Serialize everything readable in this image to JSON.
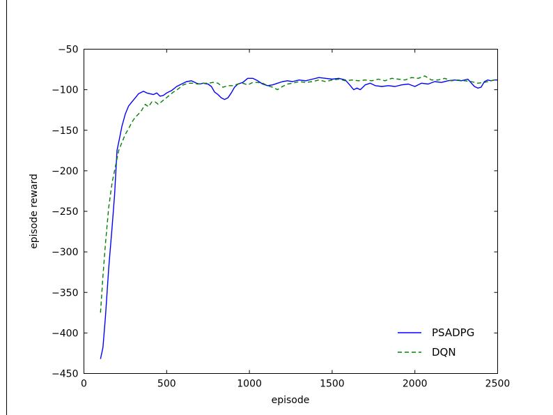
{
  "chart_data": {
    "type": "line",
    "title": "",
    "xlabel": "episode",
    "ylabel": "episode reward",
    "xlim": [
      0,
      2500
    ],
    "ylim": [
      -450,
      -50
    ],
    "xticks": [
      0,
      500,
      1000,
      1500,
      2000,
      2500
    ],
    "yticks": [
      -50,
      -100,
      -150,
      -200,
      -250,
      -300,
      -350,
      -400,
      -450
    ],
    "xtick_labels": [
      "0",
      "500",
      "1000",
      "1500",
      "2000",
      "2500"
    ],
    "ytick_labels": [
      "−50",
      "−100",
      "−150",
      "−200",
      "−250",
      "−300",
      "−350",
      "−400",
      "−450"
    ],
    "grid": false,
    "legend_position": "lower-right",
    "series": [
      {
        "name": "PSADPG",
        "color": "#0000ff",
        "style": "solid",
        "x": [
          100,
          115,
          130,
          150,
          170,
          185,
          200,
          215,
          230,
          250,
          270,
          290,
          310,
          330,
          360,
          380,
          400,
          420,
          440,
          460,
          480,
          500,
          530,
          560,
          590,
          620,
          650,
          680,
          700,
          720,
          750,
          770,
          790,
          810,
          830,
          850,
          870,
          890,
          910,
          930,
          960,
          990,
          1020,
          1050,
          1080,
          1110,
          1140,
          1170,
          1200,
          1230,
          1260,
          1300,
          1340,
          1380,
          1420,
          1460,
          1500,
          1540,
          1580,
          1610,
          1630,
          1650,
          1670,
          1700,
          1730,
          1760,
          1800,
          1840,
          1880,
          1920,
          1960,
          2000,
          2040,
          2080,
          2120,
          2160,
          2200,
          2240,
          2280,
          2320,
          2360,
          2380,
          2400,
          2420,
          2440,
          2460,
          2480,
          2500
        ],
        "values": [
          -432,
          -418,
          -380,
          -320,
          -270,
          -230,
          -175,
          -160,
          -145,
          -130,
          -120,
          -115,
          -110,
          -105,
          -102,
          -104,
          -105,
          -106,
          -104,
          -108,
          -107,
          -104,
          -101,
          -96,
          -93,
          -90,
          -89,
          -92,
          -93,
          -92,
          -93,
          -96,
          -103,
          -106,
          -110,
          -112,
          -110,
          -104,
          -97,
          -93,
          -91,
          -86,
          -86,
          -89,
          -93,
          -95,
          -94,
          -92,
          -90,
          -89,
          -90,
          -88,
          -89,
          -87,
          -85,
          -86,
          -87,
          -86,
          -88,
          -95,
          -100,
          -98,
          -100,
          -94,
          -92,
          -95,
          -96,
          -95,
          -96,
          -94,
          -93,
          -96,
          -92,
          -93,
          -90,
          -91,
          -89,
          -88,
          -89,
          -87,
          -96,
          -98,
          -97,
          -90,
          -88,
          -89,
          -88,
          -88
        ]
      },
      {
        "name": "DQN",
        "color": "#008000",
        "style": "dashed",
        "x": [
          100,
          115,
          130,
          150,
          170,
          190,
          210,
          230,
          250,
          270,
          290,
          310,
          330,
          350,
          370,
          390,
          410,
          430,
          450,
          480,
          510,
          540,
          570,
          600,
          630,
          660,
          690,
          720,
          750,
          780,
          810,
          840,
          870,
          900,
          930,
          960,
          990,
          1020,
          1050,
          1080,
          1110,
          1140,
          1170,
          1200,
          1230,
          1260,
          1300,
          1340,
          1380,
          1420,
          1460,
          1500,
          1540,
          1580,
          1620,
          1660,
          1700,
          1740,
          1780,
          1820,
          1860,
          1900,
          1940,
          1980,
          2020,
          2060,
          2100,
          2140,
          2180,
          2220,
          2260,
          2300,
          2340,
          2380,
          2420,
          2460,
          2500
        ],
        "values": [
          -375,
          -330,
          -290,
          -245,
          -215,
          -195,
          -175,
          -165,
          -155,
          -148,
          -140,
          -134,
          -130,
          -125,
          -118,
          -121,
          -115,
          -115,
          -118,
          -113,
          -108,
          -103,
          -99,
          -94,
          -92,
          -92,
          -93,
          -92,
          -92,
          -91,
          -92,
          -97,
          -95,
          -95,
          -93,
          -92,
          -94,
          -91,
          -91,
          -92,
          -95,
          -97,
          -100,
          -96,
          -93,
          -92,
          -90,
          -91,
          -90,
          -88,
          -90,
          -88,
          -87,
          -89,
          -88,
          -89,
          -88,
          -89,
          -87,
          -89,
          -86,
          -87,
          -88,
          -85,
          -86,
          -83,
          -88,
          -88,
          -86,
          -89,
          -88,
          -89,
          -90,
          -92,
          -91,
          -89,
          -87
        ]
      }
    ]
  }
}
